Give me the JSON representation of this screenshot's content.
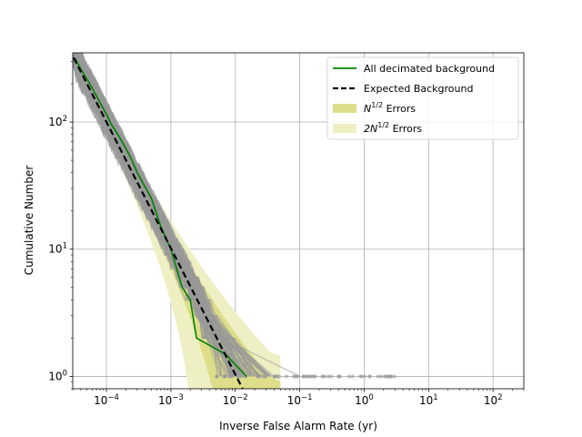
{
  "chart_data": {
    "type": "line",
    "xlabel": "Inverse False Alarm Rate (yr)",
    "ylabel": "Cumulative Number",
    "xscale": "log",
    "yscale": "log",
    "xlim": [
      3e-05,
      300
    ],
    "ylim": [
      0.8,
      350
    ],
    "grid": true,
    "legend_position": "top-right",
    "x_ticks": [
      {
        "value": 0.0001,
        "base": "10",
        "exp": "−4"
      },
      {
        "value": 0.001,
        "base": "10",
        "exp": "−3"
      },
      {
        "value": 0.01,
        "base": "10",
        "exp": "−2"
      },
      {
        "value": 0.1,
        "base": "10",
        "exp": "−1"
      },
      {
        "value": 1,
        "base": "10",
        "exp": "0"
      },
      {
        "value": 10,
        "base": "10",
        "exp": "1"
      },
      {
        "value": 100,
        "base": "10",
        "exp": "2"
      }
    ],
    "y_ticks": [
      {
        "value": 1,
        "base": "10",
        "exp": "0"
      },
      {
        "value": 10,
        "base": "10",
        "exp": "1"
      },
      {
        "value": 100,
        "base": "10",
        "exp": "2"
      }
    ],
    "legend": [
      {
        "label": "All decimated background",
        "kind": "line",
        "color": "#008000"
      },
      {
        "label": "Expected Background",
        "kind": "dashed",
        "color": "#000000"
      },
      {
        "label_prefix": "N",
        "label_sup": "1/2",
        "label_suffix": " Errors",
        "kind": "patch",
        "color": "#dede8a"
      },
      {
        "label_prefix": "2N",
        "label_sup": "1/2",
        "label_suffix": " Errors",
        "kind": "patch",
        "color": "#efefc4"
      }
    ],
    "series": [
      {
        "name": "All decimated background",
        "color": "#008000",
        "x": [
          3.2e-05,
          4e-05,
          5.5e-05,
          7.5e-05,
          0.0001,
          0.00012,
          0.00015,
          0.0002,
          0.00025,
          0.0003,
          0.0005,
          0.0007,
          0.001,
          0.0015,
          0.002,
          0.0025,
          0.007,
          0.015
        ],
        "y": [
          320,
          260,
          200,
          150,
          115,
          95,
          80,
          62,
          50,
          40,
          25,
          15,
          10,
          5,
          4,
          2,
          1.5,
          1
        ]
      },
      {
        "name": "Expected Background",
        "color": "#000000",
        "dashed": true,
        "x": [
          3.1e-05,
          0.013
        ],
        "y": [
          320,
          0.8
        ]
      }
    ],
    "bands": [
      {
        "name": "2N^1/2 Errors",
        "color": "#efefc4"
      },
      {
        "name": "N^1/2 Errors",
        "color": "#dede8a"
      }
    ],
    "background_trials": {
      "count": 100,
      "color": "#999999"
    }
  }
}
